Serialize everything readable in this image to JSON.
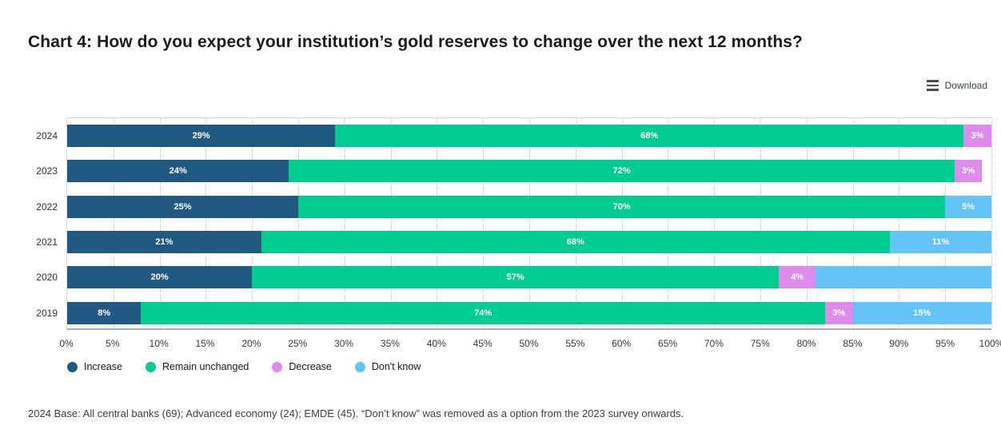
{
  "header": {
    "title": "Chart 4: How do you expect your institution’s gold reserves to change over the next 12 months?",
    "download_label": "Download"
  },
  "chart_data": {
    "type": "bar",
    "orientation": "horizontal",
    "stacked": true,
    "title": "Chart 4: How do you expect your institution’s gold reserves to change over the next 12 months?",
    "categories": [
      "2024",
      "2023",
      "2022",
      "2021",
      "2020",
      "2019"
    ],
    "series": [
      {
        "name": "Increase",
        "color": "#205a83",
        "values": [
          29,
          24,
          25,
          21,
          20,
          8
        ],
        "labels": [
          "29%",
          "24%",
          "25%",
          "21%",
          "20%",
          "8%"
        ]
      },
      {
        "name": "Remain unchanged",
        "color": "#00cd8f",
        "values": [
          68,
          72,
          70,
          68,
          57,
          74
        ],
        "labels": [
          "68%",
          "72%",
          "70%",
          "68%",
          "57%",
          "74%"
        ]
      },
      {
        "name": "Decrease",
        "color": "#dd8cee",
        "values": [
          3,
          3,
          0,
          0,
          4,
          3
        ],
        "labels": [
          "3%",
          "3%",
          "",
          "",
          "4%",
          ""
        ]
      },
      {
        "name": "Don't know",
        "color": "#62c4f7",
        "values": [
          0,
          0,
          5,
          11,
          19,
          15
        ],
        "labels": [
          "",
          "",
          "5%",
          "11%",
          "",
          "15%"
        ]
      }
    ],
    "xlim": [
      0,
      100
    ],
    "x_tick_step": 5,
    "x_ticks": [
      "0%",
      "5%",
      "10%",
      "15%",
      "20%",
      "25%",
      "30%",
      "35%",
      "40%",
      "45%",
      "50%",
      "55%",
      "60%",
      "65%",
      "70%",
      "75%",
      "80%",
      "85%",
      "90%",
      "95%",
      "100%"
    ],
    "grid": "vertical-dotted",
    "legend_position": "bottom-left",
    "legend": [
      "Increase",
      "Remain unchanged",
      "Decrease",
      "Don't know"
    ]
  },
  "decrease_2019_label": "3%",
  "footer": {
    "note": "2024 Base: All central banks (69); Advanced economy (24); EMDE (45). “Don’t know” was removed as a option from the 2023 survey onwards."
  }
}
